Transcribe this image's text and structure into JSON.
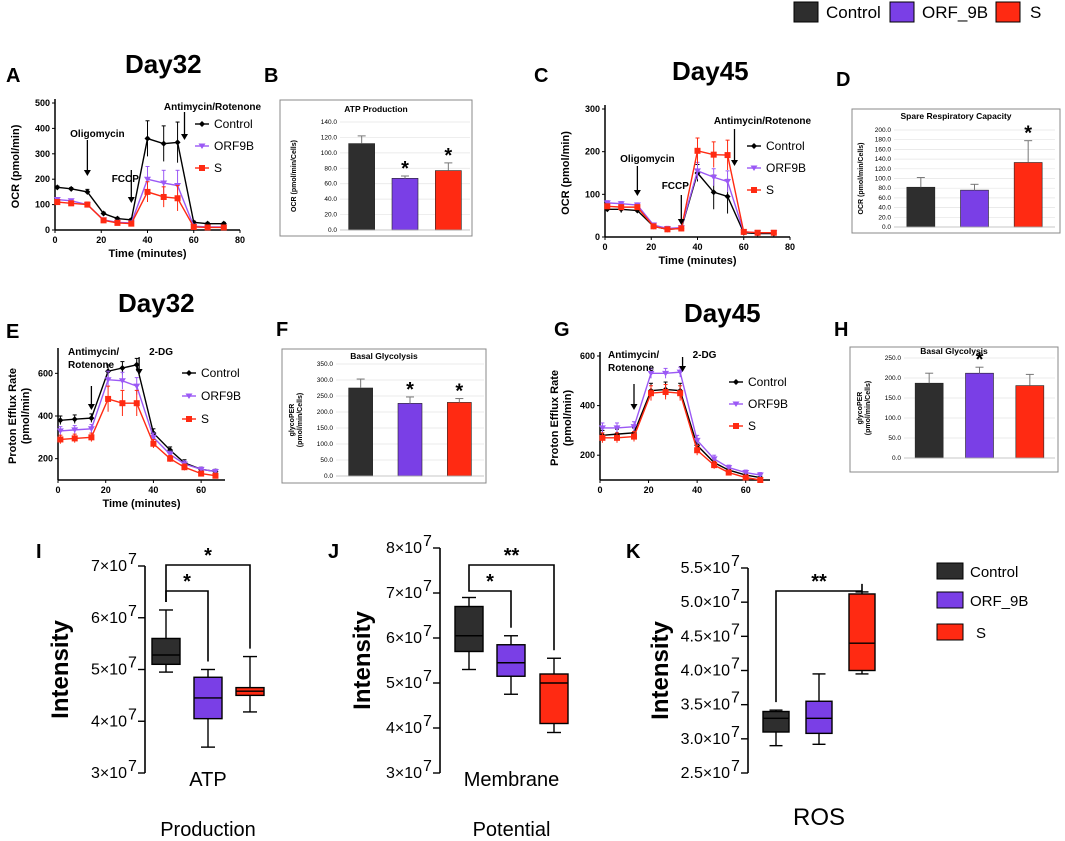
{
  "colors": {
    "Control": "#2e2e2e",
    "ORF_9B": "#7a3fe6",
    "S": "#ff2a12",
    "line_Control": "#000000",
    "line_ORF9B": "#9b59f5",
    "line_S": "#ff2a12"
  },
  "top_legend": [
    {
      "label": "Control",
      "key": "Control"
    },
    {
      "label": "ORF_9B",
      "key": "ORF_9B"
    },
    {
      "label": "S",
      "key": "S"
    }
  ],
  "panel_titles": {
    "A": "Day32",
    "C": "Day45",
    "E": "Day32",
    "G": "Day45"
  },
  "panel_letters": [
    "A",
    "B",
    "C",
    "D",
    "E",
    "F",
    "G",
    "H",
    "I",
    "J",
    "K"
  ],
  "box_legend": [
    "Control",
    "ORF_9B",
    "S"
  ],
  "chart_data": [
    {
      "id": "A",
      "type": "line",
      "title": "Day32",
      "xlabel": "Time (minutes)",
      "ylabel": "OCR (pmol/min)",
      "xlim": [
        0,
        80
      ],
      "ylim": [
        0,
        500
      ],
      "xticks": [
        0,
        20,
        40,
        60,
        80
      ],
      "yticks": [
        0,
        100,
        200,
        300,
        400,
        500
      ],
      "x": [
        1,
        7,
        14,
        21,
        27,
        33,
        40,
        47,
        53,
        60,
        66,
        73
      ],
      "series": [
        {
          "name": "Control",
          "color_key": "line_Control",
          "marker": "diamond",
          "values": [
            168,
            162,
            150,
            65,
            45,
            40,
            360,
            340,
            345,
            30,
            25,
            25
          ],
          "err": [
            5,
            5,
            10,
            5,
            5,
            5,
            70,
            70,
            80,
            5,
            5,
            5
          ]
        },
        {
          "name": "ORF9B",
          "color_key": "line_ORF9B",
          "marker": "triangle",
          "values": [
            120,
            115,
            100,
            40,
            30,
            28,
            200,
            185,
            175,
            15,
            12,
            12
          ],
          "err": [
            5,
            5,
            10,
            5,
            5,
            5,
            50,
            50,
            60,
            5,
            5,
            5
          ]
        },
        {
          "name": "S",
          "color_key": "line_S",
          "marker": "square",
          "values": [
            110,
            105,
            100,
            38,
            28,
            25,
            150,
            130,
            125,
            12,
            10,
            10
          ],
          "err": [
            5,
            5,
            10,
            5,
            5,
            5,
            40,
            40,
            50,
            5,
            5,
            5
          ]
        }
      ],
      "annotations": [
        {
          "text": "Oligomycin",
          "x": 14
        },
        {
          "text": "FCCP",
          "x": 33
        },
        {
          "text": "Antimycin/Rotenone",
          "x": 56
        }
      ]
    },
    {
      "id": "B",
      "type": "bar",
      "title": "ATP Production",
      "ylabel": "OCR (pmol/min/Cells)",
      "ylim": [
        0,
        140
      ],
      "yticks": [
        "0.0",
        "20.0",
        "40.0",
        "60.0",
        "80.0",
        "100.0",
        "120.0",
        "140.0"
      ],
      "categories": [
        "Control",
        "ORF_9B",
        "S"
      ],
      "values": [
        112,
        67,
        77
      ],
      "err": [
        10,
        3,
        10
      ],
      "significance": [
        "",
        "*",
        "*"
      ]
    },
    {
      "id": "C",
      "type": "line",
      "title": "Day45",
      "xlabel": "Time (minutes)",
      "ylabel": "OCR (pmol/min)",
      "xlim": [
        0,
        80
      ],
      "ylim": [
        0,
        300
      ],
      "xticks": [
        0,
        20,
        40,
        60,
        80
      ],
      "yticks": [
        0,
        100,
        200,
        300
      ],
      "x": [
        1,
        7,
        14,
        21,
        27,
        33,
        40,
        47,
        53,
        60,
        66,
        73
      ],
      "series": [
        {
          "name": "Control",
          "color_key": "line_Control",
          "marker": "diamond",
          "values": [
            65,
            65,
            62,
            25,
            18,
            20,
            150,
            105,
            95,
            10,
            8,
            8
          ],
          "err": [
            5,
            8,
            5,
            5,
            5,
            5,
            20,
            40,
            40,
            5,
            5,
            5
          ]
        },
        {
          "name": "ORF9B",
          "color_key": "line_ORF9B",
          "marker": "triangle",
          "values": [
            80,
            78,
            75,
            28,
            20,
            22,
            155,
            140,
            130,
            12,
            10,
            10
          ],
          "err": [
            5,
            5,
            5,
            5,
            5,
            5,
            20,
            20,
            25,
            5,
            5,
            5
          ]
        },
        {
          "name": "S",
          "color_key": "line_S",
          "marker": "square",
          "values": [
            72,
            70,
            70,
            25,
            18,
            20,
            202,
            193,
            192,
            12,
            10,
            10
          ],
          "err": [
            5,
            5,
            5,
            5,
            5,
            5,
            30,
            30,
            35,
            5,
            5,
            5
          ]
        }
      ],
      "annotations": [
        {
          "text": "Oligomycin",
          "x": 14
        },
        {
          "text": "FCCP",
          "x": 33
        },
        {
          "text": "Antimycin/Rotenone",
          "x": 56
        }
      ]
    },
    {
      "id": "D",
      "type": "bar",
      "title": "Spare Respiratory Capacity",
      "ylabel": "OCR (pmol/min/Cells)",
      "ylim": [
        0,
        200
      ],
      "yticks": [
        "0.0",
        "20.0",
        "40.0",
        "60.0",
        "80.0",
        "100.0",
        "120.0",
        "140.0",
        "160.0",
        "180.0",
        "200.0"
      ],
      "categories": [
        "Control",
        "ORF_9B",
        "S"
      ],
      "values": [
        82,
        76,
        133
      ],
      "err": [
        20,
        12,
        45
      ],
      "significance": [
        "",
        "",
        "*"
      ]
    },
    {
      "id": "E",
      "type": "line",
      "title": "Day32",
      "xlabel": "Time (minutes)",
      "ylabel": "Proton Efflux Rate (pmol/min)",
      "xlim": [
        0,
        70
      ],
      "ylim": [
        100,
        700
      ],
      "xticks": [
        0,
        20,
        40,
        60
      ],
      "yticks": [
        200,
        400,
        600
      ],
      "x": [
        1,
        7,
        14,
        21,
        27,
        33,
        40,
        47,
        53,
        60,
        66
      ],
      "series": [
        {
          "name": "Control",
          "color_key": "line_Control",
          "marker": "diamond",
          "values": [
            380,
            385,
            390,
            610,
            625,
            640,
            320,
            240,
            180,
            150,
            140
          ],
          "err": [
            20,
            20,
            20,
            30,
            30,
            30,
            20,
            15,
            15,
            10,
            10
          ]
        },
        {
          "name": "ORF9B",
          "color_key": "line_ORF9B",
          "marker": "triangle",
          "values": [
            330,
            335,
            340,
            570,
            565,
            540,
            300,
            220,
            175,
            150,
            140
          ],
          "err": [
            20,
            20,
            20,
            40,
            40,
            40,
            20,
            15,
            15,
            10,
            10
          ]
        },
        {
          "name": "S",
          "color_key": "line_S",
          "marker": "square",
          "values": [
            290,
            295,
            300,
            480,
            460,
            460,
            270,
            200,
            160,
            130,
            120
          ],
          "err": [
            20,
            20,
            20,
            60,
            60,
            60,
            20,
            15,
            15,
            10,
            10
          ]
        }
      ],
      "annotations": [
        {
          "text": "Antimycin/",
          "x": 14
        },
        {
          "text": "Rotenone",
          "x": 14
        },
        {
          "text": "2-DG",
          "x": 34
        }
      ]
    },
    {
      "id": "F",
      "type": "bar",
      "title": "Basal Glycolysis",
      "ylabel": "glycoPER (pmol/min/Cells)",
      "ylim": [
        0,
        350
      ],
      "yticks": [
        "0.0",
        "50.0",
        "100.0",
        "150.0",
        "200.0",
        "250.0",
        "300.0",
        "350.0"
      ],
      "categories": [
        "Control",
        "ORF_9B",
        "S"
      ],
      "values": [
        275,
        227,
        230
      ],
      "err": [
        28,
        20,
        12
      ],
      "significance": [
        "",
        "*",
        "*"
      ]
    },
    {
      "id": "G",
      "type": "line",
      "title": "Day45",
      "xlabel": "",
      "ylabel": "Proton Efflux Rate (pmol/min)",
      "xlim": [
        0,
        70
      ],
      "ylim": [
        100,
        600
      ],
      "xticks": [
        0,
        20,
        40,
        60
      ],
      "yticks": [
        200,
        400,
        600
      ],
      "x": [
        1,
        7,
        14,
        21,
        27,
        33,
        40,
        47,
        53,
        60,
        66
      ],
      "series": [
        {
          "name": "Control",
          "color_key": "line_Control",
          "marker": "diamond",
          "values": [
            280,
            285,
            290,
            460,
            465,
            460,
            240,
            170,
            140,
            120,
            110
          ],
          "err": [
            20,
            20,
            20,
            30,
            30,
            30,
            20,
            15,
            10,
            10,
            10
          ]
        },
        {
          "name": "ORF9B",
          "color_key": "line_ORF9B",
          "marker": "triangle",
          "values": [
            310,
            310,
            315,
            530,
            530,
            535,
            260,
            185,
            150,
            130,
            120
          ],
          "err": [
            20,
            20,
            20,
            20,
            20,
            20,
            20,
            15,
            10,
            10,
            10
          ]
        },
        {
          "name": "S",
          "color_key": "line_S",
          "marker": "square",
          "values": [
            270,
            270,
            275,
            450,
            455,
            450,
            220,
            160,
            130,
            110,
            100
          ],
          "err": [
            20,
            20,
            20,
            30,
            30,
            30,
            20,
            15,
            10,
            10,
            10
          ]
        }
      ],
      "annotations": [
        {
          "text": "Antimycin/",
          "x": 14
        },
        {
          "text": "Rotenone",
          "x": 14
        },
        {
          "text": "2-DG",
          "x": 34
        }
      ]
    },
    {
      "id": "H",
      "type": "bar",
      "title": "Basal Glycolysis",
      "ylabel": "glycoPER (pmol/min/Cells)",
      "ylim": [
        0,
        250
      ],
      "yticks": [
        "0.0",
        "50.0",
        "100.0",
        "150.0",
        "200.0",
        "250.0"
      ],
      "categories": [
        "Control",
        "ORF_9B",
        "S"
      ],
      "values": [
        187,
        212,
        181
      ],
      "err": [
        25,
        15,
        28
      ],
      "significance": [
        "",
        "*",
        ""
      ]
    },
    {
      "id": "I",
      "type": "box",
      "xlabel": [
        "ATP",
        "Production"
      ],
      "ylabel": "Intensity",
      "ylim": [
        30000000.0,
        70000000.0
      ],
      "yticks": [
        {
          "v": 30000000.0,
          "label": "3×10"
        },
        {
          "v": 40000000.0,
          "label": "4×10"
        },
        {
          "v": 50000000.0,
          "label": "5×10"
        },
        {
          "v": 60000000.0,
          "label": "6×10"
        },
        {
          "v": 70000000.0,
          "label": "7×10"
        }
      ],
      "exponent": "7",
      "boxes": [
        {
          "name": "Control",
          "min": 49500000.0,
          "q1": 51000000.0,
          "median": 52800000.0,
          "q3": 56000000.0,
          "max": 61500000.0
        },
        {
          "name": "ORF_9B",
          "min": 35000000.0,
          "q1": 40500000.0,
          "median": 44500000.0,
          "q3": 48500000.0,
          "max": 50000000.0
        },
        {
          "name": "S",
          "min": 41800000.0,
          "q1": 45000000.0,
          "median": 45800000.0,
          "q3": 46500000.0,
          "max": 52500000.0
        }
      ],
      "brackets": [
        {
          "from": 0,
          "to": 1,
          "label": "*",
          "level": 1
        },
        {
          "from": 0,
          "to": 2,
          "label": "*",
          "level": 2
        }
      ]
    },
    {
      "id": "J",
      "type": "box",
      "xlabel": [
        "Membrane",
        "Potential"
      ],
      "ylabel": "Intensity",
      "ylim": [
        30000000.0,
        80000000.0
      ],
      "yticks": [
        {
          "v": 30000000.0,
          "label": "3×10"
        },
        {
          "v": 40000000.0,
          "label": "4×10"
        },
        {
          "v": 50000000.0,
          "label": "5×10"
        },
        {
          "v": 60000000.0,
          "label": "6×10"
        },
        {
          "v": 70000000.0,
          "label": "7×10"
        },
        {
          "v": 80000000.0,
          "label": "8×10"
        }
      ],
      "exponent": "7",
      "boxes": [
        {
          "name": "Control",
          "min": 53000000.0,
          "q1": 57000000.0,
          "median": 60500000.0,
          "q3": 67000000.0,
          "max": 69000000.0
        },
        {
          "name": "ORF_9B",
          "min": 47500000.0,
          "q1": 51500000.0,
          "median": 54500000.0,
          "q3": 58500000.0,
          "max": 60500000.0
        },
        {
          "name": "S",
          "min": 39000000.0,
          "q1": 41000000.0,
          "median": 50000000.0,
          "q3": 52000000.0,
          "max": 55500000.0
        }
      ],
      "brackets": [
        {
          "from": 0,
          "to": 1,
          "label": "*",
          "level": 1
        },
        {
          "from": 0,
          "to": 2,
          "label": "**",
          "level": 2
        }
      ]
    },
    {
      "id": "K",
      "type": "box",
      "xlabel": [
        "ROS"
      ],
      "ylabel": "Intensity",
      "ylim": [
        25000000.0,
        55000000.0
      ],
      "yticks": [
        {
          "v": 25000000.0,
          "label": "2.5×10"
        },
        {
          "v": 30000000.0,
          "label": "3.0×10"
        },
        {
          "v": 35000000.0,
          "label": "3.5×10"
        },
        {
          "v": 40000000.0,
          "label": "4.0×10"
        },
        {
          "v": 45000000.0,
          "label": "4.5×10"
        },
        {
          "v": 50000000.0,
          "label": "5.0×10"
        },
        {
          "v": 55000000.0,
          "label": "5.5×10"
        }
      ],
      "exponent": "7",
      "boxes": [
        {
          "name": "Control",
          "min": 29000000.0,
          "q1": 31000000.0,
          "median": 33000000.0,
          "q3": 34000000.0,
          "max": 34200000.0
        },
        {
          "name": "ORF_9B",
          "min": 29200000.0,
          "q1": 30800000.0,
          "median": 33000000.0,
          "q3": 35500000.0,
          "max": 39500000.0
        },
        {
          "name": "S",
          "min": 39500000.0,
          "q1": 40000000.0,
          "median": 44000000.0,
          "q3": 51200000.0,
          "max": 51500000.0
        }
      ],
      "brackets": [
        {
          "from": 0,
          "to": 2,
          "label": "**",
          "level": 1
        }
      ]
    }
  ]
}
